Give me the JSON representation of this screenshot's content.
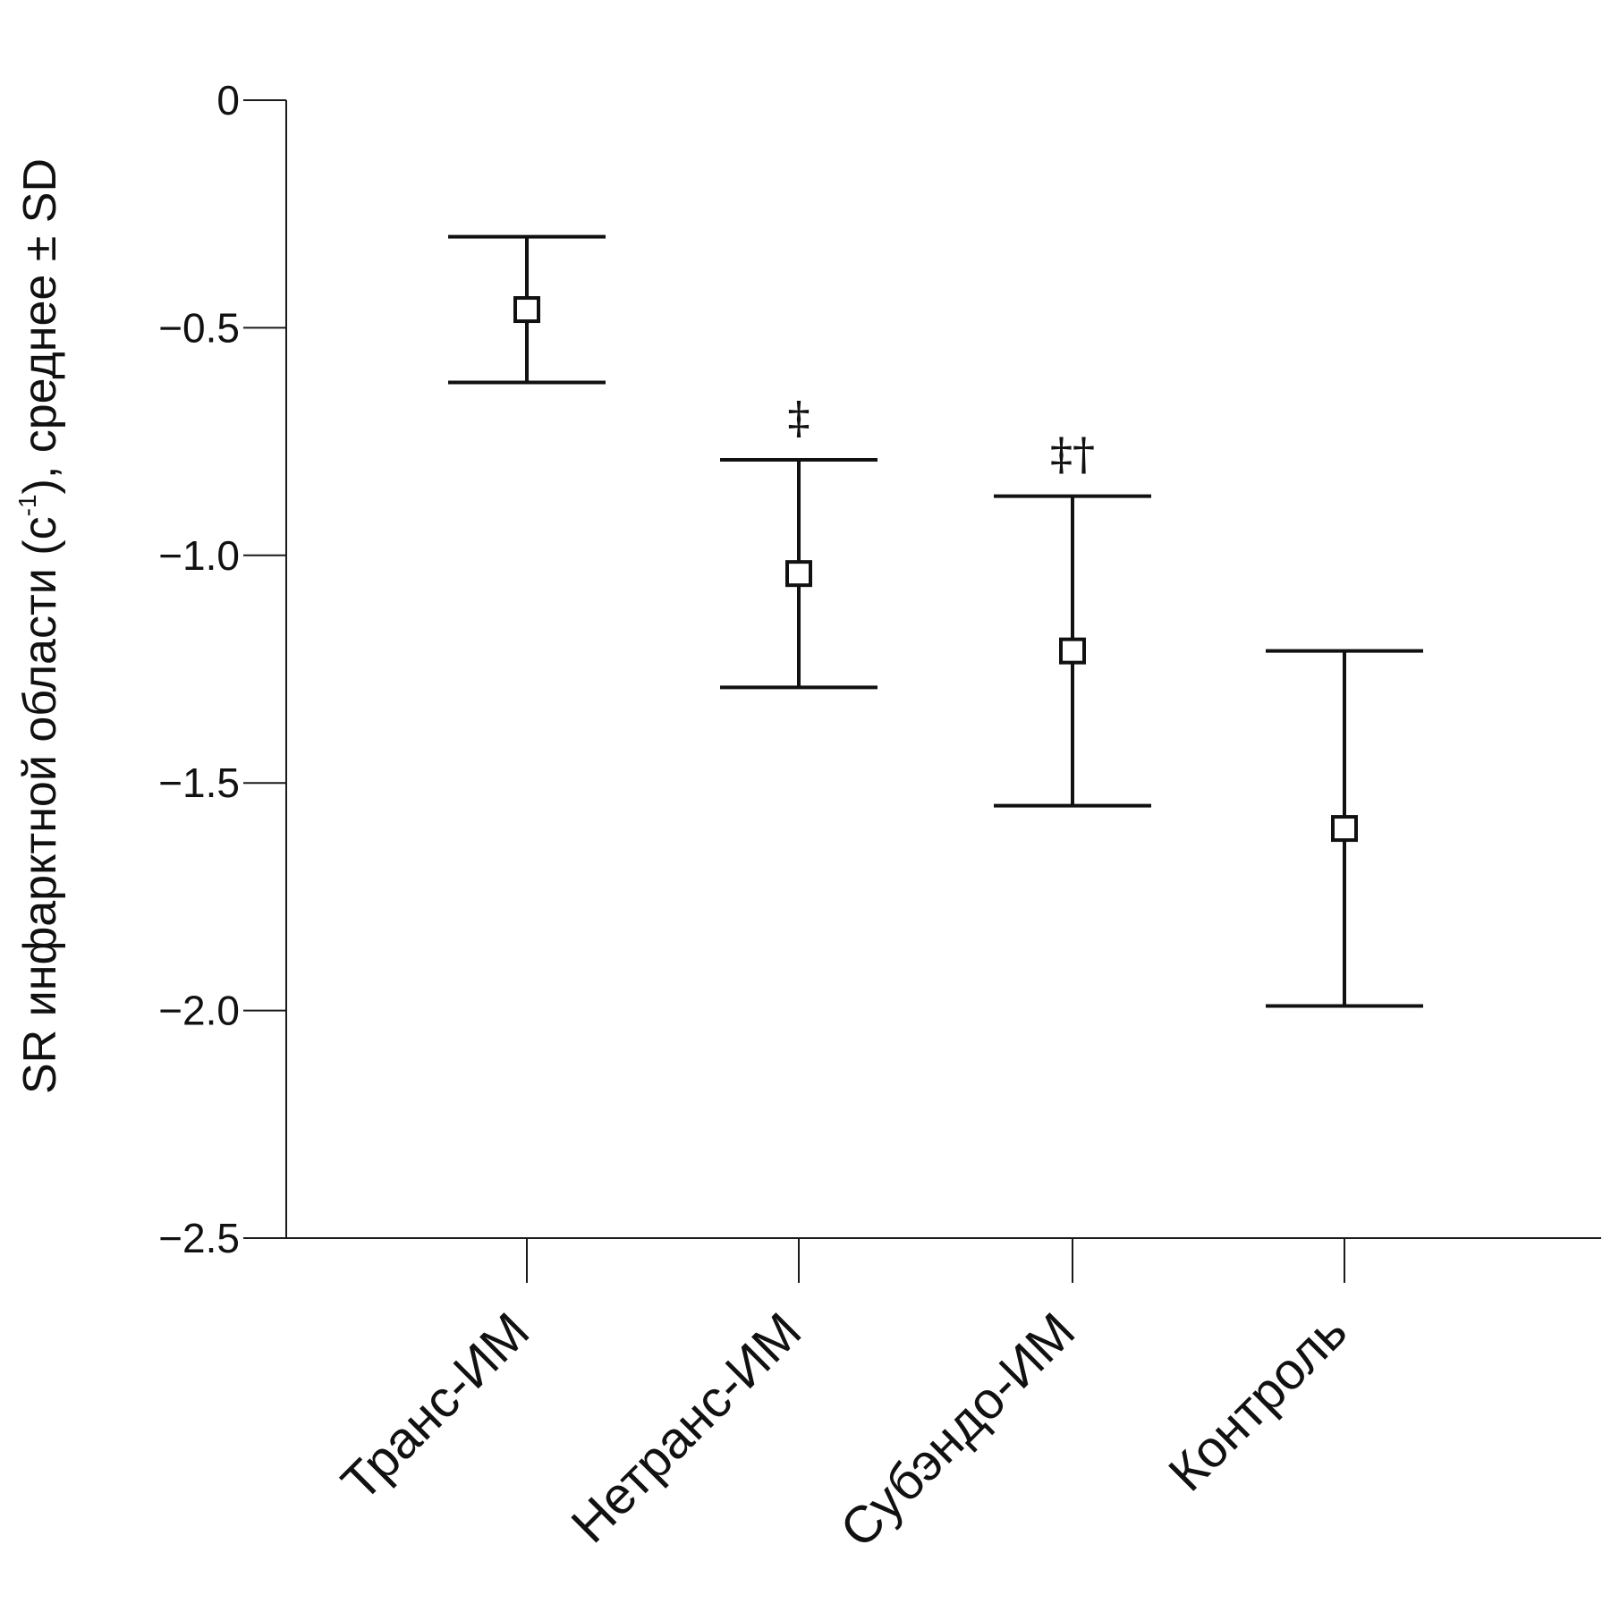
{
  "chart_data": {
    "type": "errorbar",
    "title": "",
    "xlabel": "",
    "ylabel": {
      "prefix": "SR инфарктной области (с",
      "superscript": "-1",
      "suffix": "), среднее ± SD"
    },
    "ylim": [
      -2.5,
      0
    ],
    "yticks": [
      {
        "value": 0,
        "label": "0"
      },
      {
        "value": -0.5,
        "label": "−0.5"
      },
      {
        "value": -1.0,
        "label": "−1.0"
      },
      {
        "value": -1.5,
        "label": "−1.5"
      },
      {
        "value": -2.0,
        "label": "−2.0"
      },
      {
        "value": -2.5,
        "label": "−2.5"
      }
    ],
    "grid": false,
    "categories": [
      "Транс-ИМ",
      "Нетранс-ИМ",
      "Субэндо-ИМ",
      "Контроль"
    ],
    "series": [
      {
        "name": "SR",
        "points": [
          {
            "category": "Транс-ИМ",
            "mean": -0.46,
            "upper": -0.3,
            "lower": -0.62,
            "annotation": ""
          },
          {
            "category": "Нетранс-ИМ",
            "mean": -1.04,
            "upper": -0.79,
            "lower": -1.29,
            "annotation": "‡"
          },
          {
            "category": "Субэндо-ИМ",
            "mean": -1.21,
            "upper": -0.87,
            "lower": -1.55,
            "annotation": "‡†"
          },
          {
            "category": "Контроль",
            "mean": -1.6,
            "upper": -1.21,
            "lower": -1.99,
            "annotation": ""
          }
        ]
      }
    ]
  }
}
